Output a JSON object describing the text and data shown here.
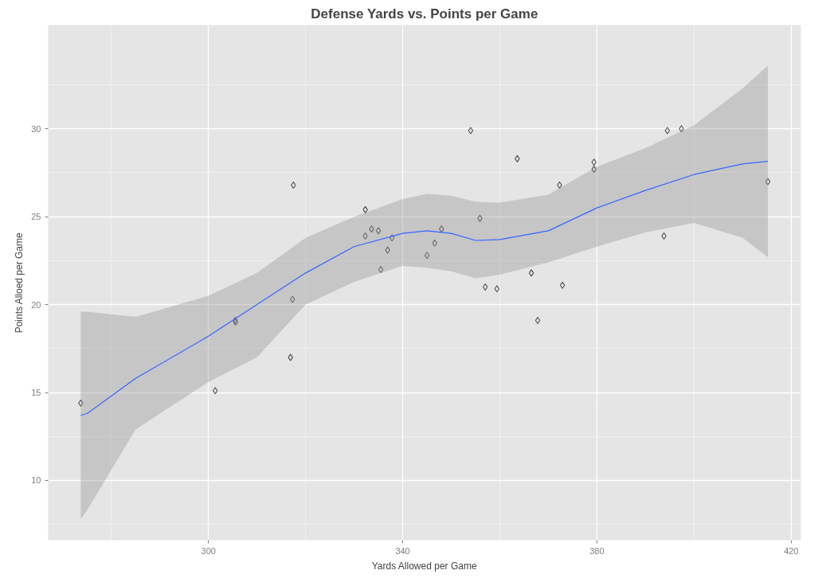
{
  "chart_data": {
    "type": "scatter",
    "title": "Defense Yards vs. Points per Game",
    "xlabel": "Yards Allowed per Game",
    "ylabel": "Points Alloed per Game",
    "xlim": [
      267,
      422
    ],
    "ylim": [
      6.6,
      35.9
    ],
    "xticks": [
      {
        "value": 280,
        "label": null
      },
      300,
      {
        "value": 320,
        "label": null
      },
      340,
      {
        "value": 360,
        "label": null
      },
      380,
      {
        "value": 400,
        "label": null
      },
      420
    ],
    "yticks": [
      {
        "value": 7.5,
        "label": null
      },
      10,
      {
        "value": 12.5,
        "label": null
      },
      15,
      {
        "value": 17.5,
        "label": null
      },
      20,
      {
        "value": 22.5,
        "label": null
      },
      25,
      {
        "value": 27.5,
        "label": null
      },
      30,
      {
        "value": 32.5,
        "label": null
      }
    ],
    "grid": true,
    "series": [
      {
        "marker": "diamond",
        "color": "#333333",
        "x": [
          273.7,
          301.4,
          305.5,
          305.6,
          316.9,
          317.3,
          317.5,
          332.3,
          332.3,
          333.6,
          335.0,
          335.5,
          336.9,
          337.8,
          345.0,
          346.6,
          348.0,
          354.0,
          355.9,
          357.0,
          359.4,
          363.6,
          366.5,
          367.8,
          372.3,
          372.9,
          379.4,
          379.4,
          393.8,
          394.5,
          397.4,
          415.2
        ],
        "values": [
          14.4,
          15.1,
          19.1,
          19.0,
          17.0,
          20.3,
          26.8,
          25.4,
          23.9,
          24.3,
          24.2,
          22.0,
          23.1,
          23.8,
          22.8,
          23.5,
          24.3,
          29.9,
          24.9,
          21.0,
          20.9,
          28.3,
          21.8,
          19.1,
          26.8,
          21.1,
          28.1,
          27.7,
          23.9,
          29.9,
          30.0,
          27.0
        ]
      },
      {
        "type": "line",
        "color": "#3366ff",
        "x": [
          273.7,
          275,
          285,
          300,
          310,
          320,
          330,
          340,
          345,
          350,
          355,
          360,
          370,
          380,
          390,
          400,
          410,
          415.2
        ],
        "values": [
          13.7,
          13.8,
          15.8,
          18.2,
          20.0,
          21.8,
          23.3,
          24.05,
          24.2,
          24.05,
          23.65,
          23.7,
          24.2,
          25.5,
          26.5,
          27.4,
          28.0,
          28.15
        ],
        "lower": [
          7.8,
          8.3,
          12.9,
          15.6,
          17.0,
          20.0,
          21.3,
          22.2,
          22.1,
          21.9,
          21.5,
          21.7,
          22.4,
          23.3,
          24.1,
          24.65,
          23.8,
          22.7
        ],
        "upper": [
          19.6,
          19.6,
          19.3,
          20.5,
          21.8,
          23.8,
          25.0,
          26.0,
          26.3,
          26.2,
          25.85,
          25.8,
          26.25,
          27.85,
          28.9,
          30.2,
          32.3,
          33.6
        ]
      }
    ]
  }
}
